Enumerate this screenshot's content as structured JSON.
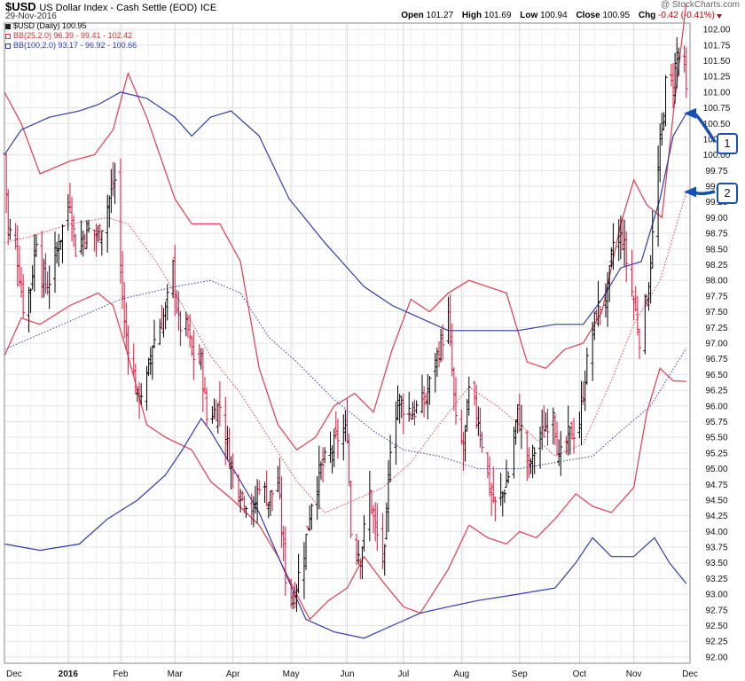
{
  "header": {
    "symbol": "$USD",
    "description": "US Dollar Index - Cash Settle (EOD)",
    "exchange": "ICE",
    "date": "29-Nov-2016",
    "watermark": "@ StockCharts.com",
    "open_label": "Open",
    "open": "101.27",
    "high_label": "High",
    "high": "101.69",
    "low_label": "Low",
    "low": "100.94",
    "close_label": "Close",
    "close": "100.95",
    "chg_label": "Chg",
    "chg": "-0.42 (-0.41%)"
  },
  "legend": {
    "price": "$USD (Daily) 100.95",
    "bb25": "BB(25,2.0) 96.39 - 99.41 - 102.42",
    "bb100": "BB(100,2.0) 93.17 - 96.92 - 100.66"
  },
  "annotations": [
    {
      "label": "1",
      "points_to": 100.66
    },
    {
      "label": "2",
      "points_to": 99.41
    }
  ],
  "colors": {
    "up": "#000000",
    "down": "#e0103a",
    "bb25": "#e23b4e",
    "bb100": "#2d3ea8",
    "grid": "#e3e3e3",
    "badge": "#1550b5"
  },
  "chart_data": {
    "type": "line",
    "title": "$USD US Dollar Index - Cash Settle (EOD)",
    "grid": true,
    "ylim": [
      91.9,
      102.1
    ],
    "y_ticks": [
      "102.00",
      "101.75",
      "101.50",
      "101.25",
      "101.00",
      "100.75",
      "100.50",
      "100.25",
      "100.00",
      "99.75",
      "99.50",
      "99.25",
      "99.00",
      "98.75",
      "98.50",
      "98.25",
      "98.00",
      "97.75",
      "97.50",
      "97.25",
      "97.00",
      "96.75",
      "96.50",
      "96.25",
      "96.00",
      "95.75",
      "95.50",
      "95.25",
      "95.00",
      "94.75",
      "94.50",
      "94.25",
      "94.00",
      "93.75",
      "93.50",
      "93.25",
      "93.00",
      "92.75",
      "92.50",
      "92.25",
      "92.00"
    ],
    "x_ticks": [
      "Dec",
      "2016",
      "Feb",
      "Mar",
      "Apr",
      "May",
      "Jun",
      "Jul",
      "Aug",
      "Sep",
      "Oct",
      "Nov",
      "Dec"
    ],
    "x_tick_dates": [
      "2015-12-01",
      "2016-01-04",
      "2016-02-01",
      "2016-03-01",
      "2016-04-01",
      "2016-05-02",
      "2016-06-01",
      "2016-07-01",
      "2016-08-01",
      "2016-09-01",
      "2016-10-03",
      "2016-11-01",
      "2016-12-01"
    ],
    "x_range": [
      "2015-12-01",
      "2016-12-01"
    ],
    "ohlc_anchors": [
      [
        "2015-12-01",
        100.0
      ],
      [
        "2015-12-03",
        98.8
      ],
      [
        "2015-12-07",
        98.6
      ],
      [
        "2015-12-11",
        97.6
      ],
      [
        "2015-12-15",
        97.9
      ],
      [
        "2015-12-18",
        98.7
      ],
      [
        "2015-12-21",
        98.1
      ],
      [
        "2015-12-24",
        97.9
      ],
      [
        "2015-12-30",
        98.6
      ],
      [
        "2016-01-05",
        99.3
      ],
      [
        "2016-01-08",
        98.5
      ],
      [
        "2016-01-14",
        98.8
      ],
      [
        "2016-01-20",
        98.7
      ],
      [
        "2016-01-26",
        99.3
      ],
      [
        "2016-01-29",
        99.6
      ],
      [
        "2016-02-03",
        97.3
      ],
      [
        "2016-02-05",
        97.0
      ],
      [
        "2016-02-08",
        96.5
      ],
      [
        "2016-02-10",
        96.1
      ],
      [
        "2016-02-15",
        96.4
      ],
      [
        "2016-02-18",
        97.0
      ],
      [
        "2016-02-25",
        97.5
      ],
      [
        "2016-02-29",
        98.2
      ],
      [
        "2016-03-03",
        97.3
      ],
      [
        "2016-03-08",
        97.2
      ],
      [
        "2016-03-10",
        96.8
      ],
      [
        "2016-03-15",
        96.7
      ],
      [
        "2016-03-18",
        95.8
      ],
      [
        "2016-03-25",
        96.0
      ],
      [
        "2016-03-30",
        95.2
      ],
      [
        "2016-04-01",
        94.9
      ],
      [
        "2016-04-06",
        94.6
      ],
      [
        "2016-04-12",
        94.3
      ],
      [
        "2016-04-15",
        94.8
      ],
      [
        "2016-04-20",
        94.5
      ],
      [
        "2016-04-25",
        94.8
      ],
      [
        "2016-04-29",
        93.3
      ],
      [
        "2016-05-03",
        92.9
      ],
      [
        "2016-05-09",
        93.7
      ],
      [
        "2016-05-13",
        94.5
      ],
      [
        "2016-05-18",
        95.0
      ],
      [
        "2016-05-24",
        95.3
      ],
      [
        "2016-05-27",
        95.5
      ],
      [
        "2016-06-01",
        95.6
      ],
      [
        "2016-06-03",
        94.0
      ],
      [
        "2016-06-08",
        93.6
      ],
      [
        "2016-06-13",
        94.6
      ],
      [
        "2016-06-16",
        94.0
      ],
      [
        "2016-06-21",
        93.6
      ],
      [
        "2016-06-24",
        95.4
      ],
      [
        "2016-06-28",
        96.1
      ],
      [
        "2016-07-01",
        96.0
      ],
      [
        "2016-07-06",
        95.9
      ],
      [
        "2016-07-13",
        96.1
      ],
      [
        "2016-07-18",
        96.7
      ],
      [
        "2016-07-21",
        97.0
      ],
      [
        "2016-07-25",
        97.4
      ],
      [
        "2016-07-29",
        95.7
      ],
      [
        "2016-08-02",
        95.3
      ],
      [
        "2016-08-05",
        96.2
      ],
      [
        "2016-08-10",
        95.8
      ],
      [
        "2016-08-16",
        94.7
      ],
      [
        "2016-08-19",
        94.4
      ],
      [
        "2016-08-23",
        94.6
      ],
      [
        "2016-08-26",
        94.9
      ],
      [
        "2016-08-31",
        95.9
      ],
      [
        "2016-09-06",
        95.0
      ],
      [
        "2016-09-09",
        95.3
      ],
      [
        "2016-09-14",
        95.6
      ],
      [
        "2016-09-19",
        96.0
      ],
      [
        "2016-09-22",
        95.1
      ],
      [
        "2016-09-27",
        95.5
      ],
      [
        "2016-10-03",
        95.7
      ],
      [
        "2016-10-06",
        96.5
      ],
      [
        "2016-10-12",
        97.5
      ],
      [
        "2016-10-18",
        97.8
      ],
      [
        "2016-10-21",
        98.6
      ],
      [
        "2016-10-26",
        98.7
      ],
      [
        "2016-10-28",
        98.3
      ],
      [
        "2016-11-02",
        97.5
      ],
      [
        "2016-11-04",
        97.1
      ],
      [
        "2016-11-09",
        97.9
      ],
      [
        "2016-11-11",
        98.7
      ],
      [
        "2016-11-15",
        100.1
      ],
      [
        "2016-11-18",
        101.1
      ],
      [
        "2016-11-22",
        101.2
      ],
      [
        "2016-11-24",
        101.6
      ],
      [
        "2016-11-28",
        101.4
      ],
      [
        "2016-11-29",
        100.95
      ]
    ],
    "series": [
      {
        "name": "BB(25,2.0) upper",
        "style": "solid",
        "color": "#e23b4e",
        "points": [
          [
            "2015-12-01",
            101.0
          ],
          [
            "2015-12-10",
            100.5
          ],
          [
            "2015-12-20",
            99.7
          ],
          [
            "2016-01-05",
            99.9
          ],
          [
            "2016-01-18",
            100.0
          ],
          [
            "2016-01-28",
            100.4
          ],
          [
            "2016-02-05",
            101.3
          ],
          [
            "2016-02-15",
            100.6
          ],
          [
            "2016-03-01",
            99.3
          ],
          [
            "2016-03-10",
            98.9
          ],
          [
            "2016-03-25",
            98.9
          ],
          [
            "2016-04-05",
            98.3
          ],
          [
            "2016-04-15",
            96.6
          ],
          [
            "2016-04-25",
            95.7
          ],
          [
            "2016-05-05",
            95.3
          ],
          [
            "2016-05-15",
            95.5
          ],
          [
            "2016-05-25",
            96.0
          ],
          [
            "2016-06-05",
            96.2
          ],
          [
            "2016-06-15",
            95.9
          ],
          [
            "2016-06-25",
            96.9
          ],
          [
            "2016-07-05",
            97.7
          ],
          [
            "2016-07-15",
            97.5
          ],
          [
            "2016-07-25",
            97.8
          ],
          [
            "2016-08-05",
            98.0
          ],
          [
            "2016-08-15",
            97.9
          ],
          [
            "2016-08-25",
            97.8
          ],
          [
            "2016-09-05",
            96.7
          ],
          [
            "2016-09-15",
            96.6
          ],
          [
            "2016-09-25",
            96.9
          ],
          [
            "2016-10-05",
            97.0
          ],
          [
            "2016-10-15",
            97.5
          ],
          [
            "2016-10-25",
            98.9
          ],
          [
            "2016-11-01",
            99.6
          ],
          [
            "2016-11-08",
            99.2
          ],
          [
            "2016-11-16",
            99.0
          ],
          [
            "2016-11-23",
            100.9
          ],
          [
            "2016-11-29",
            102.42
          ]
        ]
      },
      {
        "name": "BB(25,2.0) middle",
        "style": "dotted",
        "color": "#e23b4e",
        "points": [
          [
            "2015-12-01",
            98.6
          ],
          [
            "2015-12-15",
            98.7
          ],
          [
            "2016-01-05",
            98.9
          ],
          [
            "2016-01-25",
            99.0
          ],
          [
            "2016-02-05",
            98.9
          ],
          [
            "2016-02-20",
            98.3
          ],
          [
            "2016-03-05",
            97.6
          ],
          [
            "2016-03-20",
            96.8
          ],
          [
            "2016-04-05",
            96.2
          ],
          [
            "2016-04-20",
            95.5
          ],
          [
            "2016-05-05",
            94.8
          ],
          [
            "2016-05-20",
            94.3
          ],
          [
            "2016-06-05",
            94.5
          ],
          [
            "2016-06-20",
            94.7
          ],
          [
            "2016-07-05",
            95.1
          ],
          [
            "2016-07-20",
            95.7
          ],
          [
            "2016-08-05",
            96.3
          ],
          [
            "2016-08-20",
            96.0
          ],
          [
            "2016-09-05",
            95.6
          ],
          [
            "2016-09-20",
            95.2
          ],
          [
            "2016-10-05",
            95.4
          ],
          [
            "2016-10-20",
            96.4
          ],
          [
            "2016-11-01",
            97.3
          ],
          [
            "2016-11-15",
            98.0
          ],
          [
            "2016-11-29",
            99.41
          ]
        ]
      },
      {
        "name": "BB(25,2.0) lower",
        "style": "solid",
        "color": "#e23b4e",
        "points": [
          [
            "2015-12-01",
            96.8
          ],
          [
            "2015-12-10",
            97.4
          ],
          [
            "2015-12-20",
            97.3
          ],
          [
            "2016-01-05",
            97.6
          ],
          [
            "2016-01-20",
            97.8
          ],
          [
            "2016-01-28",
            97.6
          ],
          [
            "2016-02-05",
            96.8
          ],
          [
            "2016-02-15",
            95.7
          ],
          [
            "2016-02-25",
            95.5
          ],
          [
            "2016-03-10",
            95.3
          ],
          [
            "2016-03-20",
            94.8
          ],
          [
            "2016-04-01",
            94.5
          ],
          [
            "2016-04-15",
            94.1
          ],
          [
            "2016-04-25",
            93.6
          ],
          [
            "2016-05-05",
            93.0
          ],
          [
            "2016-05-12",
            92.6
          ],
          [
            "2016-05-22",
            92.9
          ],
          [
            "2016-06-01",
            93.1
          ],
          [
            "2016-06-10",
            93.6
          ],
          [
            "2016-06-20",
            93.2
          ],
          [
            "2016-07-01",
            92.8
          ],
          [
            "2016-07-10",
            92.7
          ],
          [
            "2016-07-25",
            93.4
          ],
          [
            "2016-08-05",
            94.1
          ],
          [
            "2016-08-15",
            93.9
          ],
          [
            "2016-08-25",
            93.8
          ],
          [
            "2016-09-01",
            94.0
          ],
          [
            "2016-09-10",
            93.9
          ],
          [
            "2016-09-20",
            94.2
          ],
          [
            "2016-10-01",
            94.6
          ],
          [
            "2016-10-10",
            94.4
          ],
          [
            "2016-10-20",
            94.3
          ],
          [
            "2016-11-01",
            94.7
          ],
          [
            "2016-11-08",
            95.9
          ],
          [
            "2016-11-15",
            96.6
          ],
          [
            "2016-11-22",
            96.4
          ],
          [
            "2016-11-29",
            96.39
          ]
        ]
      },
      {
        "name": "BB(100,2.0) upper",
        "style": "solid",
        "color": "#2d3ea8",
        "points": [
          [
            "2015-12-01",
            100.0
          ],
          [
            "2015-12-10",
            100.4
          ],
          [
            "2015-12-25",
            100.6
          ],
          [
            "2016-01-10",
            100.7
          ],
          [
            "2016-01-20",
            100.8
          ],
          [
            "2016-02-01",
            101.0
          ],
          [
            "2016-02-15",
            100.9
          ],
          [
            "2016-03-01",
            100.6
          ],
          [
            "2016-03-10",
            100.3
          ],
          [
            "2016-03-20",
            100.6
          ],
          [
            "2016-03-31",
            100.7
          ],
          [
            "2016-04-15",
            100.3
          ],
          [
            "2016-05-01",
            99.3
          ],
          [
            "2016-05-20",
            98.6
          ],
          [
            "2016-06-10",
            97.9
          ],
          [
            "2016-06-25",
            97.6
          ],
          [
            "2016-07-10",
            97.4
          ],
          [
            "2016-07-25",
            97.2
          ],
          [
            "2016-08-10",
            97.2
          ],
          [
            "2016-08-31",
            97.2
          ],
          [
            "2016-09-20",
            97.3
          ],
          [
            "2016-10-05",
            97.3
          ],
          [
            "2016-10-15",
            97.7
          ],
          [
            "2016-10-25",
            98.2
          ],
          [
            "2016-11-05",
            98.3
          ],
          [
            "2016-11-15",
            99.3
          ],
          [
            "2016-11-22",
            100.3
          ],
          [
            "2016-11-29",
            100.66
          ]
        ]
      },
      {
        "name": "BB(100,2.0) middle",
        "style": "dotted",
        "color": "#2d3ea8",
        "points": [
          [
            "2015-12-01",
            96.9
          ],
          [
            "2016-01-01",
            97.3
          ],
          [
            "2016-02-01",
            97.7
          ],
          [
            "2016-03-01",
            97.9
          ],
          [
            "2016-03-20",
            98.0
          ],
          [
            "2016-04-05",
            97.8
          ],
          [
            "2016-04-20",
            97.1
          ],
          [
            "2016-05-05",
            96.7
          ],
          [
            "2016-05-25",
            96.1
          ],
          [
            "2016-06-15",
            95.6
          ],
          [
            "2016-07-01",
            95.3
          ],
          [
            "2016-07-20",
            95.2
          ],
          [
            "2016-08-10",
            95.0
          ],
          [
            "2016-09-01",
            95.0
          ],
          [
            "2016-09-20",
            95.1
          ],
          [
            "2016-10-10",
            95.2
          ],
          [
            "2016-10-25",
            95.6
          ],
          [
            "2016-11-10",
            96.0
          ],
          [
            "2016-11-29",
            96.92
          ]
        ]
      },
      {
        "name": "BB(100,2.0) lower",
        "style": "solid",
        "color": "#2d3ea8",
        "points": [
          [
            "2015-12-01",
            93.8
          ],
          [
            "2015-12-20",
            93.7
          ],
          [
            "2016-01-10",
            93.8
          ],
          [
            "2016-01-25",
            94.2
          ],
          [
            "2016-02-10",
            94.5
          ],
          [
            "2016-02-25",
            94.9
          ],
          [
            "2016-03-05",
            95.3
          ],
          [
            "2016-03-15",
            95.8
          ],
          [
            "2016-03-20",
            95.6
          ],
          [
            "2016-04-01",
            95.0
          ],
          [
            "2016-04-15",
            94.3
          ],
          [
            "2016-05-01",
            93.2
          ],
          [
            "2016-05-10",
            92.6
          ],
          [
            "2016-05-25",
            92.4
          ],
          [
            "2016-06-10",
            92.3
          ],
          [
            "2016-06-25",
            92.5
          ],
          [
            "2016-07-10",
            92.7
          ],
          [
            "2016-07-25",
            92.8
          ],
          [
            "2016-08-10",
            92.9
          ],
          [
            "2016-08-31",
            93.0
          ],
          [
            "2016-09-20",
            93.1
          ],
          [
            "2016-10-01",
            93.5
          ],
          [
            "2016-10-10",
            93.9
          ],
          [
            "2016-10-20",
            93.6
          ],
          [
            "2016-11-01",
            93.6
          ],
          [
            "2016-11-12",
            93.9
          ],
          [
            "2016-11-20",
            93.5
          ],
          [
            "2016-11-29",
            93.17
          ]
        ]
      }
    ]
  }
}
